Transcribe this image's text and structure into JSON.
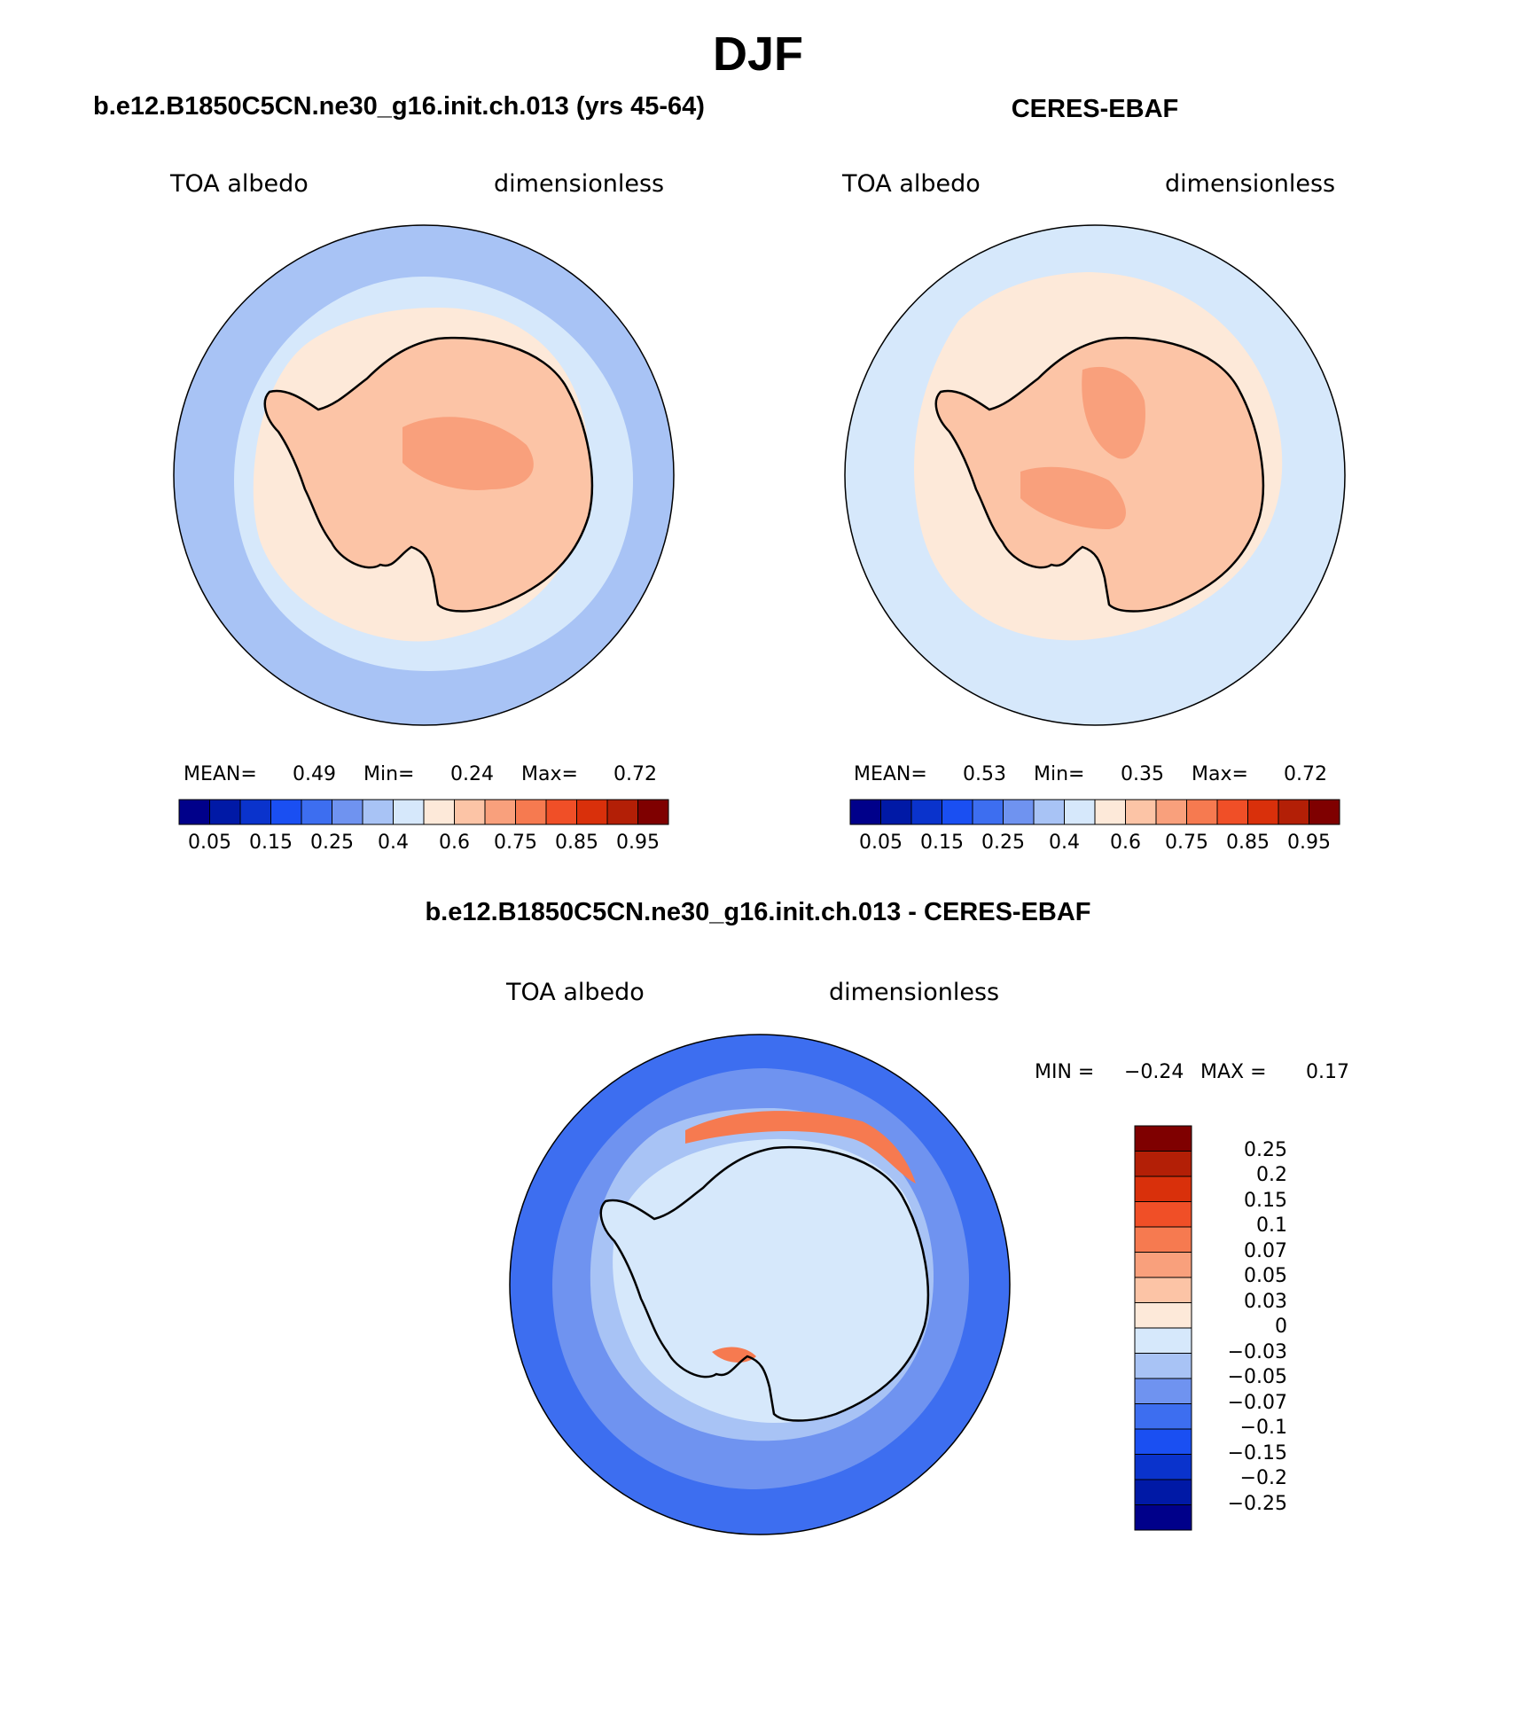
{
  "figure": {
    "season": "DJF",
    "model_title": "b.e12.B1850C5CN.ne30_g16.init.ch.013 (yrs 45-64)",
    "obs_title": "CERES-EBAF",
    "diff_title": "b.e12.B1850C5CN.ne30_g16.init.ch.013 - CERES-EBAF"
  },
  "panels": {
    "model": {
      "variable": "TOA albedo",
      "units": "dimensionless",
      "mean_label": "MEAN=",
      "mean_value": "0.49",
      "min_label": "Min=",
      "min_value": "0.24",
      "max_label": "Max=",
      "max_value": "0.72"
    },
    "obs": {
      "variable": "TOA albedo",
      "units": "dimensionless",
      "mean_label": "MEAN=",
      "mean_value": "0.53",
      "min_label": "Min=",
      "min_value": "0.35",
      "max_label": "Max=",
      "max_value": "0.72"
    },
    "diff": {
      "variable": "TOA albedo",
      "units": "dimensionless",
      "min_label": "MIN =",
      "min_value": "−0.24",
      "max_label": "MAX =",
      "max_value": "0.17"
    }
  },
  "colorbars": {
    "abs_colors": [
      "#00008a",
      "#0019a6",
      "#0a33cc",
      "#1a4ff2",
      "#3d6ef0",
      "#6f93f0",
      "#a8c3f5",
      "#d6e8fb",
      "#fde9d9",
      "#fcc4a6",
      "#f9a07c",
      "#f67a50",
      "#f04f27",
      "#d9300b",
      "#b31f06",
      "#7f0000"
    ],
    "abs_ticks": [
      "0.05",
      "0.15",
      "0.25",
      "0.4",
      "0.6",
      "0.75",
      "0.85",
      "0.95"
    ],
    "diff_colors": [
      "#7f0000",
      "#b31f06",
      "#d9300b",
      "#f04f27",
      "#f67a50",
      "#f9a07c",
      "#fcc4a6",
      "#fde9d9",
      "#d6e8fb",
      "#a8c3f5",
      "#6f93f0",
      "#3d6ef0",
      "#1a4ff2",
      "#0a33cc",
      "#0019a6",
      "#00008a"
    ],
    "diff_ticks": [
      "0.25",
      "0.2",
      "0.15",
      "0.1",
      "0.07",
      "0.05",
      "0.03",
      "0",
      "−0.03",
      "−0.05",
      "−0.07",
      "−0.1",
      "−0.15",
      "−0.2",
      "−0.25"
    ]
  },
  "map_colors": {
    "ocean_model": "#a8c3f5",
    "ocean_obs": "#d6e8fb",
    "ice_ring": "#fde9d9",
    "continent": "#fcc4a6",
    "plateau": "#f9a07c",
    "diff_ocean": "#3d6ef0",
    "diff_mid": "#6f93f0",
    "diff_ring": "#a8c3f5",
    "diff_inner": "#d6e8fb",
    "diff_pos": "#f67a50"
  }
}
